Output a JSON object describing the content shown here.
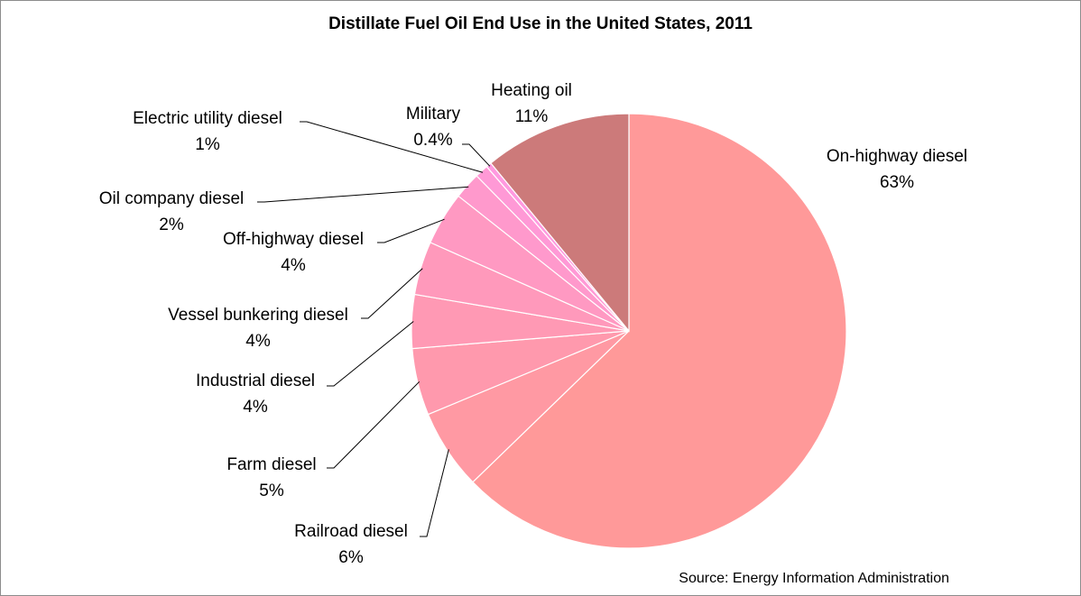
{
  "chart_data": {
    "type": "pie",
    "title": "Distillate Fuel Oil End Use in the United States, 2011",
    "source": "Source:  Energy Information Administration",
    "slices": [
      {
        "label": "On-highway diesel",
        "value": 63,
        "value_label": "63%",
        "color": "#FF9999"
      },
      {
        "label": "Railroad diesel",
        "value": 6,
        "value_label": "6%",
        "color": "#FF99A3"
      },
      {
        "label": "Farm diesel",
        "value": 5,
        "value_label": "5%",
        "color": "#FF99AD"
      },
      {
        "label": "Industrial diesel",
        "value": 4,
        "value_label": "4%",
        "color": "#FF99B4"
      },
      {
        "label": "Vessel bunkering diesel",
        "value": 4,
        "value_label": "4%",
        "color": "#FF99BB"
      },
      {
        "label": "Off-highway diesel",
        "value": 4,
        "value_label": "4%",
        "color": "#FF99C2"
      },
      {
        "label": "Oil company diesel",
        "value": 2,
        "value_label": "2%",
        "color": "#FF99CC"
      },
      {
        "label": "Electric utility diesel",
        "value": 1,
        "value_label": "1%",
        "color": "#FF99D6"
      },
      {
        "label": "Military",
        "value": 0.4,
        "value_label": "0.4%",
        "color": "#FF99E0"
      },
      {
        "label": "Heating oil",
        "value": 11,
        "value_label": "11%",
        "color": "#CC7A7A"
      }
    ]
  }
}
